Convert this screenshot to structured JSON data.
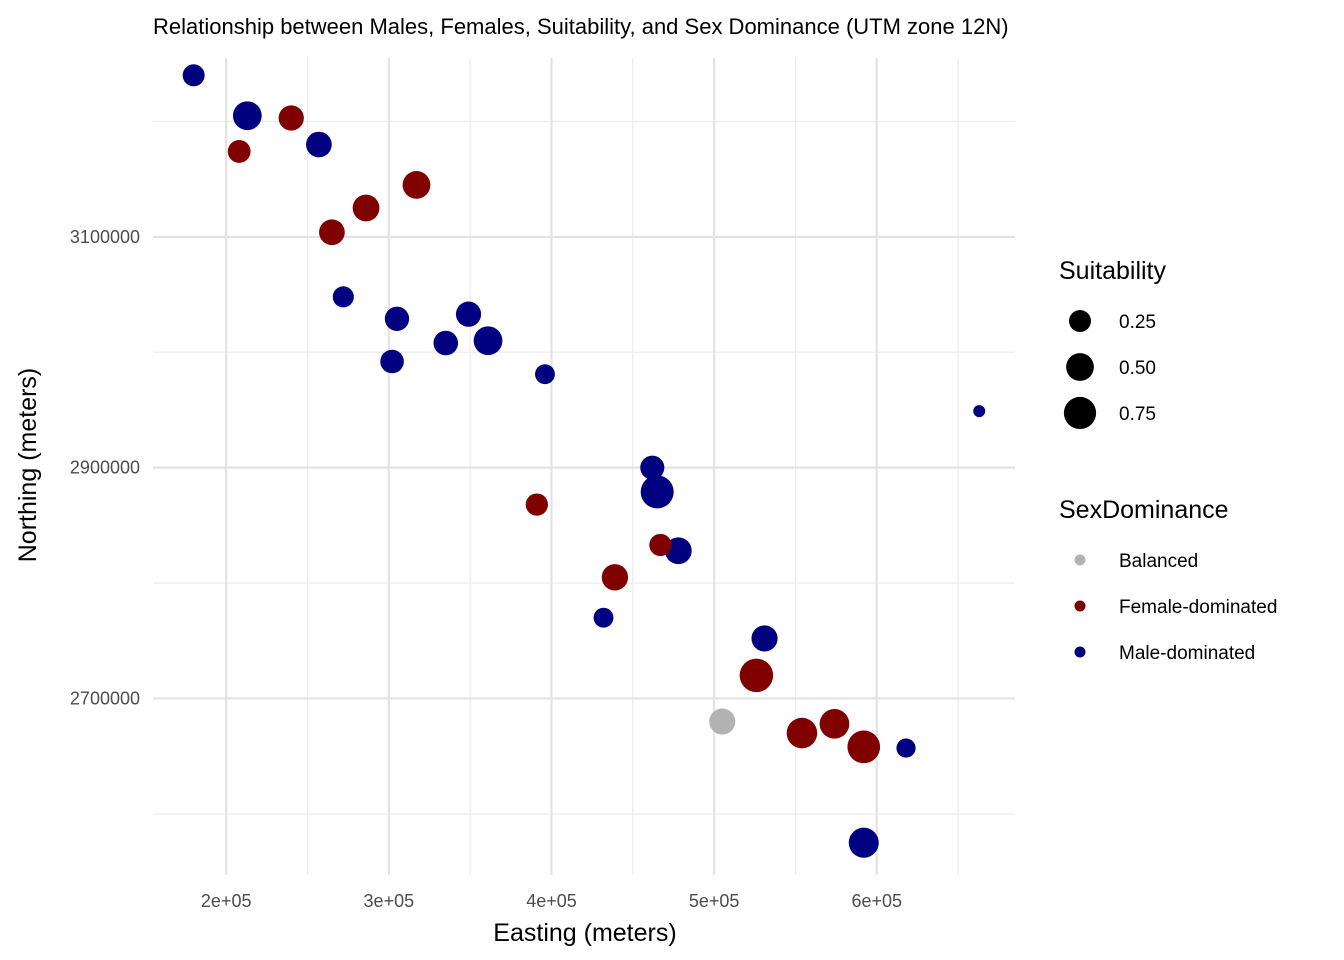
{
  "chart_data": {
    "type": "scatter",
    "title": "Relationship between Males, Females, Suitability, and Sex Dominance (UTM zone 12N)",
    "xlabel": "Easting (meters)",
    "ylabel": "Northing (meters)",
    "xlim": [
      155000,
      685000
    ],
    "ylim": [
      2547000,
      3255000
    ],
    "x_ticks": [
      200000,
      300000,
      400000,
      500000,
      600000
    ],
    "x_tick_labels": [
      "2e+05",
      "3e+05",
      "4e+05",
      "5e+05",
      "6e+05"
    ],
    "y_ticks": [
      2700000,
      2900000,
      3100000
    ],
    "y_tick_labels": [
      "2700000",
      "2900000",
      "3100000"
    ],
    "grid": true,
    "legend_position": "right",
    "size_legend": {
      "title": "Suitability",
      "values": [
        0.25,
        0.5,
        0.75
      ],
      "labels": [
        "0.25",
        "0.50",
        "0.75"
      ]
    },
    "color_legend": {
      "title": "SexDominance",
      "categories": [
        "Balanced",
        "Female-dominated",
        "Male-dominated"
      ],
      "colors": [
        "#b3b3b3",
        "#800000",
        "#000080"
      ]
    },
    "points": [
      {
        "x": 180000,
        "y": 3240000,
        "suitability": 0.25,
        "group": "Male-dominated"
      },
      {
        "x": 213000,
        "y": 3205000,
        "suitability": 0.55,
        "group": "Male-dominated"
      },
      {
        "x": 240000,
        "y": 3203000,
        "suitability": 0.38,
        "group": "Female-dominated"
      },
      {
        "x": 208000,
        "y": 3174000,
        "suitability": 0.28,
        "group": "Female-dominated"
      },
      {
        "x": 257000,
        "y": 3180000,
        "suitability": 0.4,
        "group": "Male-dominated"
      },
      {
        "x": 317000,
        "y": 3145000,
        "suitability": 0.5,
        "group": "Female-dominated"
      },
      {
        "x": 286000,
        "y": 3125000,
        "suitability": 0.45,
        "group": "Female-dominated"
      },
      {
        "x": 265000,
        "y": 3104000,
        "suitability": 0.4,
        "group": "Female-dominated"
      },
      {
        "x": 272000,
        "y": 3048000,
        "suitability": 0.22,
        "group": "Male-dominated"
      },
      {
        "x": 305000,
        "y": 3029000,
        "suitability": 0.34,
        "group": "Male-dominated"
      },
      {
        "x": 349000,
        "y": 3033000,
        "suitability": 0.38,
        "group": "Male-dominated"
      },
      {
        "x": 335000,
        "y": 3008000,
        "suitability": 0.35,
        "group": "Male-dominated"
      },
      {
        "x": 361000,
        "y": 3010000,
        "suitability": 0.55,
        "group": "Male-dominated"
      },
      {
        "x": 302000,
        "y": 2992000,
        "suitability": 0.31,
        "group": "Male-dominated"
      },
      {
        "x": 396000,
        "y": 2981000,
        "suitability": 0.18,
        "group": "Male-dominated"
      },
      {
        "x": 663000,
        "y": 2949000,
        "suitability": 0.02,
        "group": "Male-dominated"
      },
      {
        "x": 462000,
        "y": 2900000,
        "suitability": 0.33,
        "group": "Male-dominated"
      },
      {
        "x": 465000,
        "y": 2879000,
        "suitability": 0.8,
        "group": "Male-dominated"
      },
      {
        "x": 391000,
        "y": 2868000,
        "suitability": 0.26,
        "group": "Female-dominated"
      },
      {
        "x": 467000,
        "y": 2833000,
        "suitability": 0.26,
        "group": "Female-dominated"
      },
      {
        "x": 478000,
        "y": 2828000,
        "suitability": 0.45,
        "group": "Male-dominated"
      },
      {
        "x": 439000,
        "y": 2805000,
        "suitability": 0.43,
        "group": "Female-dominated"
      },
      {
        "x": 432000,
        "y": 2770000,
        "suitability": 0.18,
        "group": "Male-dominated"
      },
      {
        "x": 531000,
        "y": 2752000,
        "suitability": 0.42,
        "group": "Male-dominated"
      },
      {
        "x": 526000,
        "y": 2720000,
        "suitability": 0.83,
        "group": "Female-dominated"
      },
      {
        "x": 505000,
        "y": 2680000,
        "suitability": 0.42,
        "group": "Balanced"
      },
      {
        "x": 554000,
        "y": 2670000,
        "suitability": 0.65,
        "group": "Female-dominated"
      },
      {
        "x": 574000,
        "y": 2678000,
        "suitability": 0.6,
        "group": "Female-dominated"
      },
      {
        "x": 592000,
        "y": 2658000,
        "suitability": 0.78,
        "group": "Female-dominated"
      },
      {
        "x": 618000,
        "y": 2657000,
        "suitability": 0.16,
        "group": "Male-dominated"
      },
      {
        "x": 592000,
        "y": 2575000,
        "suitability": 0.62,
        "group": "Male-dominated"
      }
    ]
  }
}
